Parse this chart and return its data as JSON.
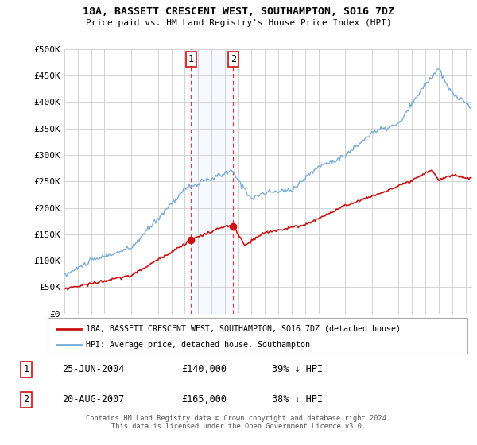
{
  "title": "18A, BASSETT CRESCENT WEST, SOUTHAMPTON, SO16 7DZ",
  "subtitle": "Price paid vs. HM Land Registry's House Price Index (HPI)",
  "ylabel_ticks": [
    "£0",
    "£50K",
    "£100K",
    "£150K",
    "£200K",
    "£250K",
    "£300K",
    "£350K",
    "£400K",
    "£450K",
    "£500K"
  ],
  "ytick_values": [
    0,
    50000,
    100000,
    150000,
    200000,
    250000,
    300000,
    350000,
    400000,
    450000,
    500000
  ],
  "ylim": [
    0,
    500000
  ],
  "xlim_start": 1995.0,
  "xlim_end": 2025.5,
  "hpi_color": "#7aacdb",
  "price_color": "#cc1111",
  "transaction1_x": 2004.48,
  "transaction1_y": 140000,
  "transaction1_label": "1",
  "transaction1_date": "25-JUN-2004",
  "transaction1_price": "£140,000",
  "transaction1_hpi": "39% ↓ HPI",
  "transaction2_x": 2007.63,
  "transaction2_y": 165000,
  "transaction2_label": "2",
  "transaction2_date": "20-AUG-2007",
  "transaction2_price": "£165,000",
  "transaction2_hpi": "38% ↓ HPI",
  "legend_line1": "18A, BASSETT CRESCENT WEST, SOUTHAMPTON, SO16 7DZ (detached house)",
  "legend_line2": "HPI: Average price, detached house, Southampton",
  "footer": "Contains HM Land Registry data © Crown copyright and database right 2024.\nThis data is licensed under the Open Government Licence v3.0.",
  "background_color": "#ffffff",
  "grid_color": "#cccccc",
  "shade_color": "#ddeeff"
}
